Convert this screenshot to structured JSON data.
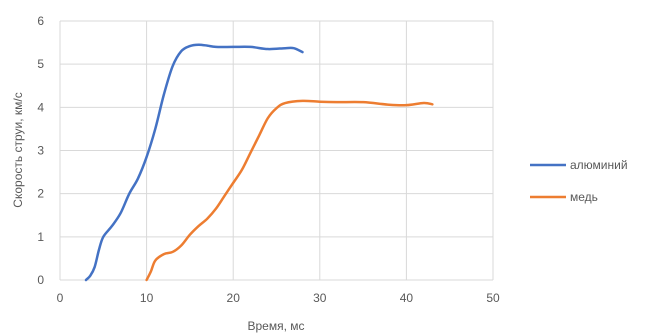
{
  "chart_data": {
    "type": "line",
    "xlabel": "Время, мс",
    "ylabel": "Скорость струи, км/с",
    "xlim": [
      0,
      50
    ],
    "ylim": [
      0,
      6
    ],
    "x_ticks": [
      0,
      10,
      20,
      30,
      40,
      50
    ],
    "y_ticks": [
      0,
      1,
      2,
      3,
      4,
      5,
      6
    ],
    "grid": true,
    "legend_position": "right",
    "series": [
      {
        "name": "алюминий",
        "color": "#4472C4",
        "points": [
          [
            3.0,
            0.0
          ],
          [
            3.5,
            0.1
          ],
          [
            4.0,
            0.3
          ],
          [
            4.5,
            0.7
          ],
          [
            5.0,
            1.0
          ],
          [
            6.0,
            1.25
          ],
          [
            7.0,
            1.55
          ],
          [
            8.0,
            2.0
          ],
          [
            9.0,
            2.35
          ],
          [
            10.0,
            2.85
          ],
          [
            11.0,
            3.5
          ],
          [
            12.0,
            4.3
          ],
          [
            13.0,
            4.95
          ],
          [
            14.0,
            5.3
          ],
          [
            15.0,
            5.42
          ],
          [
            16.0,
            5.45
          ],
          [
            17.0,
            5.43
          ],
          [
            18.0,
            5.4
          ],
          [
            20.0,
            5.4
          ],
          [
            22.0,
            5.4
          ],
          [
            24.0,
            5.35
          ],
          [
            26.0,
            5.37
          ],
          [
            27.0,
            5.37
          ],
          [
            28.0,
            5.28
          ]
        ]
      },
      {
        "name": "медь",
        "color": "#ED7D31",
        "points": [
          [
            10.0,
            0.0
          ],
          [
            10.5,
            0.2
          ],
          [
            11.0,
            0.45
          ],
          [
            12.0,
            0.6
          ],
          [
            13.0,
            0.65
          ],
          [
            14.0,
            0.8
          ],
          [
            15.0,
            1.05
          ],
          [
            16.0,
            1.25
          ],
          [
            17.0,
            1.42
          ],
          [
            18.0,
            1.65
          ],
          [
            19.0,
            1.95
          ],
          [
            20.0,
            2.25
          ],
          [
            21.0,
            2.55
          ],
          [
            22.0,
            2.95
          ],
          [
            23.0,
            3.35
          ],
          [
            24.0,
            3.75
          ],
          [
            25.0,
            3.98
          ],
          [
            26.0,
            4.1
          ],
          [
            28.0,
            4.15
          ],
          [
            30.0,
            4.13
          ],
          [
            32.0,
            4.12
          ],
          [
            35.0,
            4.12
          ],
          [
            38.0,
            4.06
          ],
          [
            40.0,
            4.05
          ],
          [
            42.0,
            4.1
          ],
          [
            43.0,
            4.07
          ]
        ]
      }
    ]
  }
}
